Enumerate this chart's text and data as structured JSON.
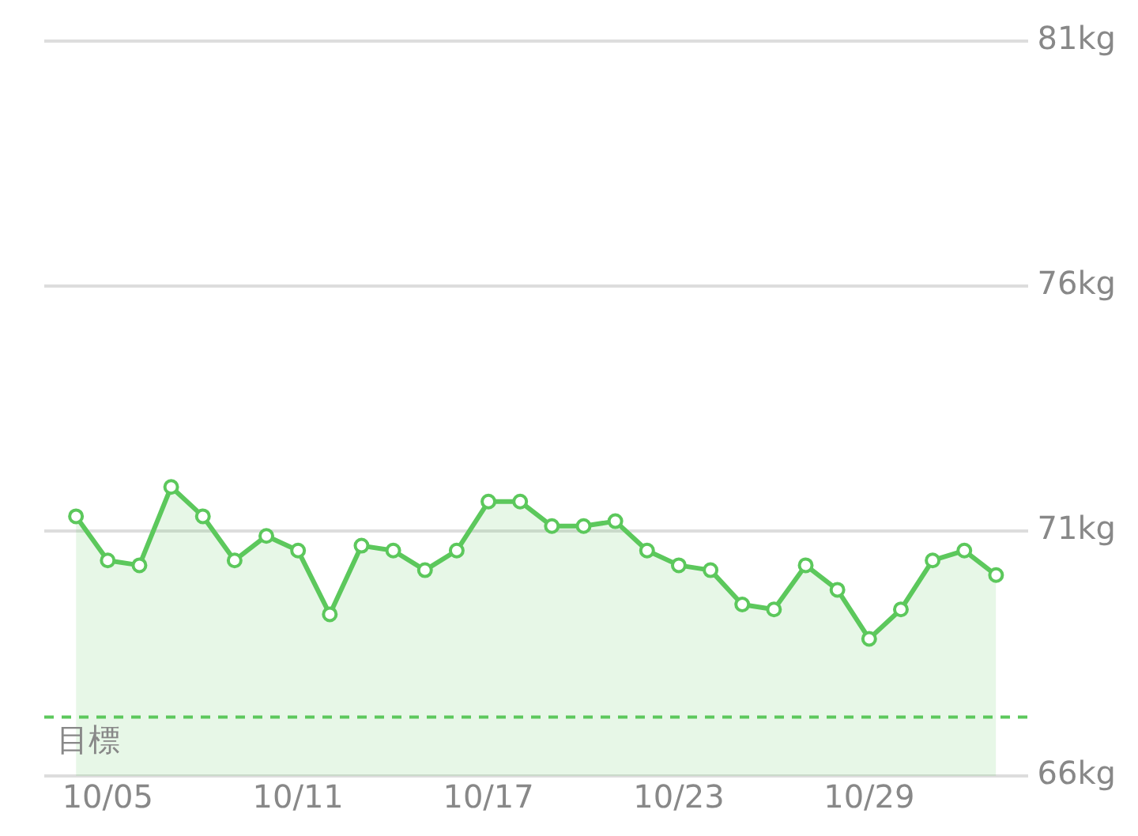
{
  "chart_data": {
    "type": "area",
    "x": [
      "--10-04",
      "--10-05",
      "--10-06",
      "--10-07",
      "--10-08",
      "--10-09",
      "--10-10",
      "--10-11",
      "--10-12",
      "--10-13",
      "--10-14",
      "--10-15",
      "--10-16",
      "--10-17",
      "--10-18",
      "--10-19",
      "--10-20",
      "--10-21",
      "--10-22",
      "--10-23",
      "--10-24",
      "--10-25",
      "--10-26",
      "--10-27",
      "--10-28",
      "--10-29",
      "--10-30",
      "--10-31",
      "--11-01",
      "--11-02"
    ],
    "series": [
      {
        "color": "#5cc85c",
        "values": [
          71.3,
          70.4,
          70.3,
          71.9,
          71.3,
          70.4,
          70.9,
          70.6,
          69.3,
          70.7,
          70.6,
          70.2,
          70.6,
          71.6,
          71.6,
          71.1,
          71.1,
          71.2,
          70.6,
          70.3,
          70.2,
          69.5,
          69.4,
          70.3,
          69.8,
          68.8,
          69.4,
          70.4,
          70.6,
          70.1
        ]
      }
    ],
    "xlim": [
      "--10-03",
      "--11-03"
    ],
    "xticks": [
      {
        "value": "--10-05",
        "label": "10/05"
      },
      {
        "value": "--10-11",
        "label": "10/11"
      },
      {
        "value": "--10-17",
        "label": "10/17"
      },
      {
        "value": "--10-23",
        "label": "10/23"
      },
      {
        "value": "--10-29",
        "label": "10/29"
      }
    ],
    "ylim": [
      66,
      81
    ],
    "yticks": [
      {
        "value": 66,
        "label": "66kg"
      },
      {
        "value": 71,
        "label": "71kg"
      },
      {
        "value": 76,
        "label": "76kg"
      },
      {
        "value": 81,
        "label": "81kg"
      }
    ],
    "ref_lines": [
      {
        "axis": "y",
        "value": 67.2,
        "label": "目標",
        "color": "#5cc85c",
        "line_style": "dashed"
      }
    ],
    "grid": "y",
    "marker": "circle",
    "line_style": "solid",
    "legend": false
  }
}
